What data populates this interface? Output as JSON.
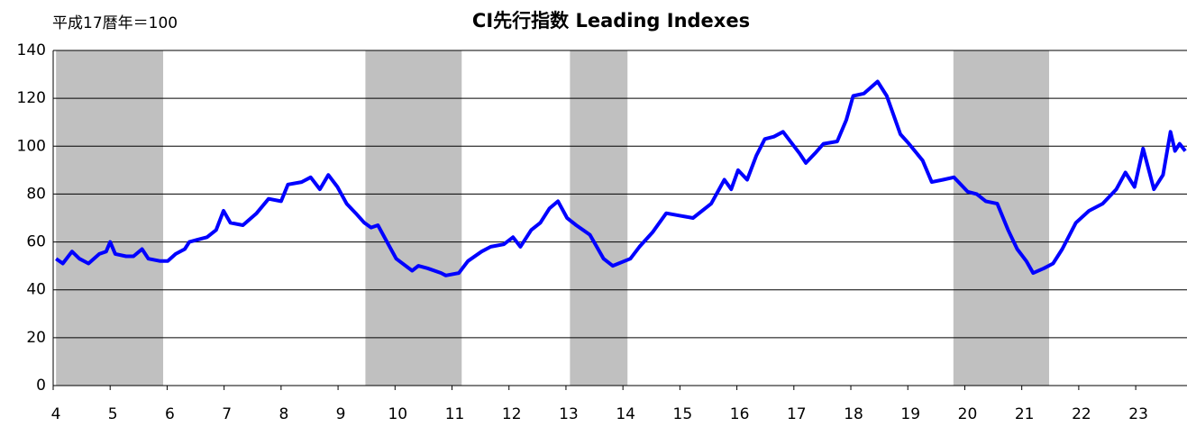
{
  "chart_data": {
    "type": "line",
    "title": "CI先行指数 Leading Indexes",
    "y_unit_label": "平成17暦年＝100",
    "color": "#0000ff",
    "shade_color": "#c0c0c0",
    "grid": true,
    "xlim": [
      4,
      23.9
    ],
    "xticks": [
      4,
      5,
      6,
      7,
      8,
      9,
      10,
      11,
      12,
      13,
      14,
      15,
      16,
      17,
      18,
      19,
      20,
      21,
      22,
      23
    ],
    "ylim": [
      0,
      140
    ],
    "yticks": [
      0,
      20,
      40,
      60,
      80,
      100,
      120,
      140
    ],
    "shaded_periods": [
      [
        4.05,
        5.93
      ],
      [
        9.48,
        11.17
      ],
      [
        13.07,
        14.08
      ],
      [
        19.8,
        21.48
      ]
    ],
    "x": [
      4.05,
      4.17,
      4.33,
      4.46,
      4.62,
      4.81,
      4.93,
      5.0,
      5.09,
      5.28,
      5.41,
      5.56,
      5.67,
      5.88,
      6.01,
      6.15,
      6.31,
      6.39,
      6.54,
      6.7,
      6.86,
      6.99,
      7.11,
      7.33,
      7.57,
      7.78,
      8.0,
      8.12,
      8.36,
      8.52,
      8.68,
      8.83,
      8.99,
      9.15,
      9.31,
      9.46,
      9.58,
      9.7,
      9.86,
      10.02,
      10.3,
      10.41,
      10.57,
      10.81,
      10.89,
      11.12,
      11.28,
      11.52,
      11.68,
      11.91,
      12.07,
      12.2,
      12.39,
      12.55,
      12.71,
      12.86,
      13.02,
      13.18,
      13.42,
      13.66,
      13.82,
      14.13,
      14.29,
      14.52,
      14.76,
      14.99,
      15.23,
      15.55,
      15.78,
      15.9,
      16.02,
      16.18,
      16.34,
      16.49,
      16.65,
      16.81,
      16.97,
      17.1,
      17.21,
      17.37,
      17.52,
      17.76,
      17.92,
      18.04,
      18.23,
      18.47,
      18.63,
      18.87,
      19.02,
      19.26,
      19.42,
      19.62,
      19.81,
      20.05,
      20.21,
      20.37,
      20.57,
      20.76,
      20.92,
      21.08,
      21.2,
      21.39,
      21.55,
      21.71,
      21.95,
      22.18,
      22.42,
      22.66,
      22.82,
      22.98,
      23.13,
      23.32,
      23.48,
      23.61,
      23.69,
      23.77,
      23.87
    ],
    "values": [
      53,
      51,
      56,
      53,
      51,
      55,
      56,
      60,
      55,
      54,
      54,
      57,
      53,
      52,
      52,
      55,
      57,
      60,
      61,
      62,
      65,
      73,
      68,
      67,
      72,
      78,
      77,
      84,
      85,
      87,
      82,
      88,
      83,
      76,
      72,
      68,
      66,
      67,
      60,
      53,
      48,
      50,
      49,
      47,
      46,
      47,
      52,
      56,
      58,
      59,
      62,
      58,
      65,
      68,
      74,
      77,
      70,
      67,
      63,
      53,
      50,
      53,
      58,
      64,
      72,
      71,
      70,
      76,
      86,
      82,
      90,
      86,
      96,
      103,
      104,
      106,
      101,
      97,
      93,
      97,
      101,
      102,
      111,
      121,
      122,
      127,
      121,
      105,
      101,
      94,
      85,
      86,
      87,
      81,
      80,
      77,
      76,
      65,
      57,
      52,
      47,
      49,
      51,
      57,
      68,
      73,
      76,
      82,
      89,
      83,
      99,
      82,
      88,
      106,
      98,
      101,
      98
    ]
  }
}
